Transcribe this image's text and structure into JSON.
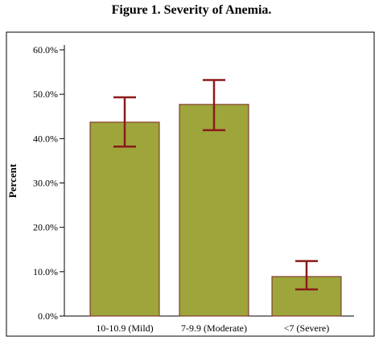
{
  "chart_data": {
    "type": "bar",
    "title": "Figure 1. Severity of Anemia.",
    "xlabel": "",
    "ylabel": "Percent",
    "categories": [
      "10-10.9 (Mild)",
      "7-9.9 (Moderate)",
      "<7 (Severe)"
    ],
    "values": [
      43.7,
      47.7,
      8.9
    ],
    "error_low": [
      38.2,
      41.9,
      6.0
    ],
    "error_high": [
      49.3,
      53.2,
      12.4
    ],
    "ylim": [
      0,
      60
    ],
    "yticks": [
      0,
      10,
      20,
      30,
      40,
      50,
      60
    ],
    "ytick_labels": [
      "0.0%",
      "10.0%",
      "20.0%",
      "30.0%",
      "40.0%",
      "50.0%",
      "60.0%"
    ],
    "grid": false,
    "colors": {
      "bar_fill": "#9ea53a",
      "bar_stroke": "#7a2020",
      "error_bar": "#8b1a1a",
      "frame": "#000000"
    }
  }
}
